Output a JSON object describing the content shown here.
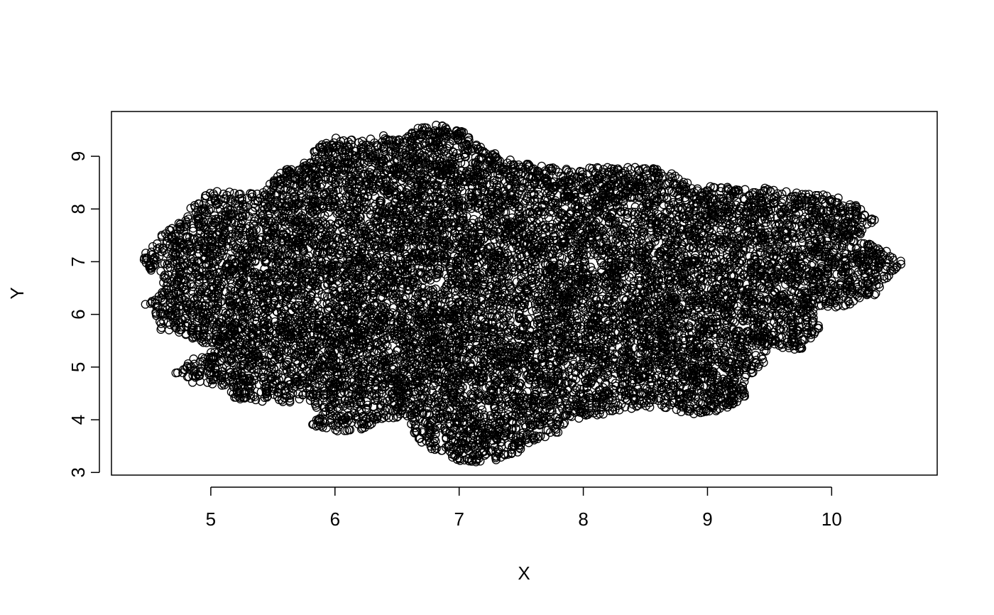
{
  "chart_data": {
    "type": "scatter",
    "title": "",
    "xlabel": "X",
    "ylabel": "Y",
    "xlim": [
      4.2,
      10.85
    ],
    "ylim": [
      2.95,
      9.85
    ],
    "x_ticks": [
      5,
      6,
      7,
      8,
      9,
      10
    ],
    "y_ticks": [
      3,
      4,
      5,
      6,
      7,
      8,
      9
    ],
    "x_tick_labels": [
      "5",
      "6",
      "7",
      "8",
      "9",
      "10"
    ],
    "y_tick_labels": [
      "3",
      "4",
      "5",
      "6",
      "7",
      "8",
      "9"
    ],
    "grid": false,
    "legend": "none",
    "marker": "open-circle",
    "point_color": "#000000",
    "point_cloud": {
      "approx_points": 12000,
      "x_extent": [
        4.45,
        10.6
      ],
      "y_extent": [
        3.15,
        9.6
      ],
      "boundary": [
        [
          4.45,
          7.15
        ],
        [
          4.6,
          7.5
        ],
        [
          4.75,
          7.75
        ],
        [
          4.85,
          8.1
        ],
        [
          5.0,
          8.35
        ],
        [
          5.25,
          8.35
        ],
        [
          5.4,
          8.3
        ],
        [
          5.55,
          8.7
        ],
        [
          5.8,
          8.95
        ],
        [
          5.85,
          9.3
        ],
        [
          6.0,
          9.35
        ],
        [
          6.2,
          9.3
        ],
        [
          6.4,
          9.4
        ],
        [
          6.55,
          9.3
        ],
        [
          6.65,
          9.55
        ],
        [
          6.85,
          9.6
        ],
        [
          7.05,
          9.45
        ],
        [
          7.25,
          9.1
        ],
        [
          7.45,
          8.9
        ],
        [
          7.9,
          8.75
        ],
        [
          8.1,
          8.8
        ],
        [
          8.4,
          8.8
        ],
        [
          8.65,
          8.75
        ],
        [
          8.9,
          8.45
        ],
        [
          9.25,
          8.4
        ],
        [
          9.5,
          8.4
        ],
        [
          9.75,
          8.3
        ],
        [
          10.05,
          8.25
        ],
        [
          10.25,
          8.0
        ],
        [
          10.35,
          7.8
        ],
        [
          10.2,
          7.45
        ],
        [
          10.45,
          7.2
        ],
        [
          10.6,
          6.95
        ],
        [
          10.45,
          6.7
        ],
        [
          10.35,
          6.35
        ],
        [
          10.1,
          6.15
        ],
        [
          9.85,
          6.05
        ],
        [
          9.9,
          5.75
        ],
        [
          9.75,
          5.3
        ],
        [
          9.5,
          5.4
        ],
        [
          9.45,
          5.05
        ],
        [
          9.3,
          4.75
        ],
        [
          9.3,
          4.4
        ],
        [
          9.1,
          4.15
        ],
        [
          8.85,
          4.1
        ],
        [
          8.6,
          4.25
        ],
        [
          8.4,
          4.2
        ],
        [
          8.15,
          4.1
        ],
        [
          7.9,
          4.0
        ],
        [
          7.8,
          3.75
        ],
        [
          7.6,
          3.6
        ],
        [
          7.45,
          3.35
        ],
        [
          7.25,
          3.2
        ],
        [
          7.0,
          3.2
        ],
        [
          6.85,
          3.4
        ],
        [
          6.7,
          3.5
        ],
        [
          6.6,
          3.9
        ],
        [
          6.4,
          4.05
        ],
        [
          6.2,
          3.8
        ],
        [
          6.0,
          3.75
        ],
        [
          5.8,
          3.9
        ],
        [
          5.9,
          4.1
        ],
        [
          5.8,
          4.35
        ],
        [
          5.5,
          4.3
        ],
        [
          5.2,
          4.35
        ],
        [
          5.1,
          4.65
        ],
        [
          4.85,
          4.7
        ],
        [
          4.7,
          4.85
        ],
        [
          4.85,
          5.15
        ],
        [
          5.05,
          5.35
        ],
        [
          4.8,
          5.6
        ],
        [
          4.6,
          5.7
        ],
        [
          4.55,
          6.05
        ],
        [
          4.45,
          6.2
        ],
        [
          4.65,
          6.5
        ],
        [
          4.55,
          6.75
        ],
        [
          4.45,
          7.0
        ]
      ]
    }
  }
}
